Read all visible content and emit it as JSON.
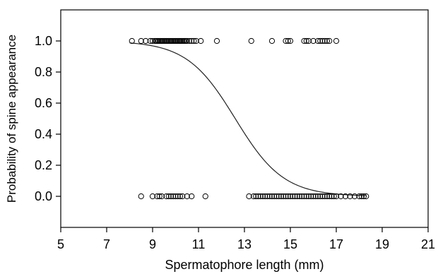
{
  "chart_data": {
    "type": "scatter",
    "xlabel": "Spermatophore length (mm)",
    "ylabel": "Probability of spine appearance",
    "xlim": [
      5,
      21
    ],
    "ylim": [
      -0.2,
      1.2
    ],
    "x_ticks": [
      5,
      7,
      9,
      11,
      13,
      15,
      17,
      19,
      21
    ],
    "x_tick_labels": [
      "5",
      "7",
      "9",
      "11",
      "13",
      "15",
      "17",
      "19",
      "21"
    ],
    "y_ticks": [
      0.0,
      0.2,
      0.4,
      0.6,
      0.8,
      1.0
    ],
    "y_tick_labels": [
      "0.0",
      "0.2",
      "0.4",
      "0.6",
      "0.8",
      "1.0"
    ],
    "grid": false,
    "legend": "none",
    "series": [
      {
        "marker": "open-circle",
        "x": [
          8.1,
          8.5,
          8.7,
          8.9,
          9.0,
          9.1,
          9.15,
          9.2,
          9.25,
          9.3,
          9.35,
          9.4,
          9.45,
          9.5,
          9.55,
          9.6,
          9.65,
          9.7,
          9.75,
          9.8,
          9.85,
          9.9,
          9.95,
          10.0,
          10.05,
          10.1,
          10.15,
          10.2,
          10.25,
          10.3,
          10.35,
          10.4,
          10.45,
          10.5,
          10.6,
          10.7,
          10.8,
          10.9,
          11.1,
          11.8,
          13.3,
          14.2,
          14.8,
          14.9,
          15.0,
          15.6,
          15.7,
          15.8,
          16.0,
          16.2,
          16.3,
          16.4,
          16.5,
          16.6,
          16.7,
          17.0
        ],
        "y": [
          1.0,
          1.0,
          1.0,
          1.0,
          1.0,
          1.0,
          1.0,
          1.0,
          1.0,
          1.0,
          1.0,
          1.0,
          1.0,
          1.0,
          1.0,
          1.0,
          1.0,
          1.0,
          1.0,
          1.0,
          1.0,
          1.0,
          1.0,
          1.0,
          1.0,
          1.0,
          1.0,
          1.0,
          1.0,
          1.0,
          1.0,
          1.0,
          1.0,
          1.0,
          1.0,
          1.0,
          1.0,
          1.0,
          1.0,
          1.0,
          1.0,
          1.0,
          1.0,
          1.0,
          1.0,
          1.0,
          1.0,
          1.0,
          1.0,
          1.0,
          1.0,
          1.0,
          1.0,
          1.0,
          1.0,
          1.0
        ]
      },
      {
        "marker": "open-circle",
        "x": [
          8.5,
          9.0,
          9.2,
          9.3,
          9.4,
          9.6,
          9.7,
          9.8,
          9.9,
          10.0,
          10.1,
          10.2,
          10.3,
          10.5,
          10.7,
          11.3,
          13.2,
          13.4,
          13.5,
          13.6,
          13.7,
          13.8,
          13.9,
          14.0,
          14.1,
          14.2,
          14.3,
          14.4,
          14.5,
          14.6,
          14.7,
          14.8,
          14.9,
          15.0,
          15.1,
          15.2,
          15.3,
          15.4,
          15.5,
          15.6,
          15.7,
          15.8,
          15.9,
          16.0,
          16.1,
          16.2,
          16.3,
          16.4,
          16.5,
          16.6,
          16.7,
          16.8,
          16.9,
          17.0,
          17.2,
          17.4,
          17.6,
          17.8,
          18.0,
          18.1,
          18.2,
          18.3
        ],
        "y": [
          0.0,
          0.0,
          0.0,
          0.0,
          0.0,
          0.0,
          0.0,
          0.0,
          0.0,
          0.0,
          0.0,
          0.0,
          0.0,
          0.0,
          0.0,
          0.0,
          0.0,
          0.0,
          0.0,
          0.0,
          0.0,
          0.0,
          0.0,
          0.0,
          0.0,
          0.0,
          0.0,
          0.0,
          0.0,
          0.0,
          0.0,
          0.0,
          0.0,
          0.0,
          0.0,
          0.0,
          0.0,
          0.0,
          0.0,
          0.0,
          0.0,
          0.0,
          0.0,
          0.0,
          0.0,
          0.0,
          0.0,
          0.0,
          0.0,
          0.0,
          0.0,
          0.0,
          0.0,
          0.0,
          0.0,
          0.0,
          0.0,
          0.0,
          0.0,
          0.0,
          0.0,
          0.0
        ]
      }
    ],
    "fit_curve": {
      "type": "logistic",
      "x_range": [
        8.0,
        18.3
      ],
      "midpoint": 12.6,
      "slope": 0.95
    }
  }
}
